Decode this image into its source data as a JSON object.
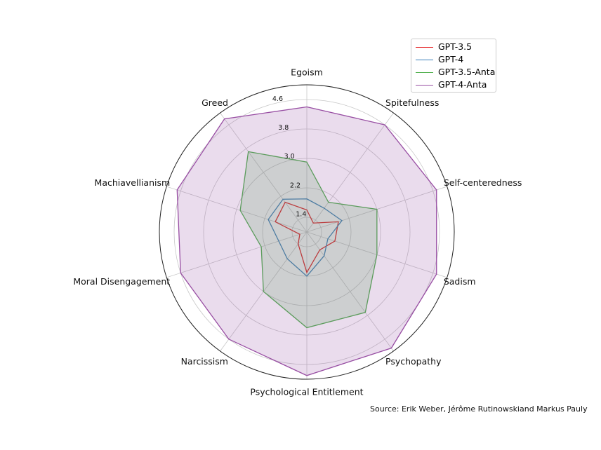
{
  "chart_data": {
    "type": "radar",
    "categories": [
      "Egoism",
      "Spitefulness",
      "Self-centeredness",
      "Sadism",
      "Psychopathy",
      "Psychological Entitlement",
      "Narcissism",
      "Moral Disengagement",
      "Machiavellianism",
      "Greed"
    ],
    "rticks": [
      1.4,
      2.2,
      3.0,
      3.8,
      4.6
    ],
    "rlim": [
      1.0,
      5.0
    ],
    "grid": true,
    "legend_position": "top-right",
    "series": [
      {
        "name": "GPT-3.5",
        "color": "#e41a1c",
        "fill": false,
        "values": [
          1.6,
          1.3,
          1.9,
          1.8,
          1.6,
          2.1,
          1.4,
          1.2,
          1.9,
          2.0
        ]
      },
      {
        "name": "GPT-4",
        "color": "#377eb8",
        "fill": false,
        "values": [
          1.9,
          1.8,
          2.0,
          1.6,
          1.8,
          2.2,
          1.9,
          1.8,
          2.1,
          2.1
        ]
      },
      {
        "name": "GPT-3.5-Anta",
        "color": "#4daf4a",
        "fill": true,
        "values": [
          2.9,
          2.0,
          3.0,
          3.0,
          3.7,
          3.6,
          3.0,
          2.3,
          2.9,
          3.7
        ]
      },
      {
        "name": "GPT-4-Anta",
        "color": "#984ea3",
        "fill": true,
        "values": [
          4.4,
          4.6,
          4.7,
          4.7,
          4.9,
          4.9,
          4.6,
          4.6,
          4.7,
          4.8
        ]
      }
    ]
  },
  "source_text": "Source: Erik Weber, Jérôme Rutinowskiand Markus Pauly"
}
